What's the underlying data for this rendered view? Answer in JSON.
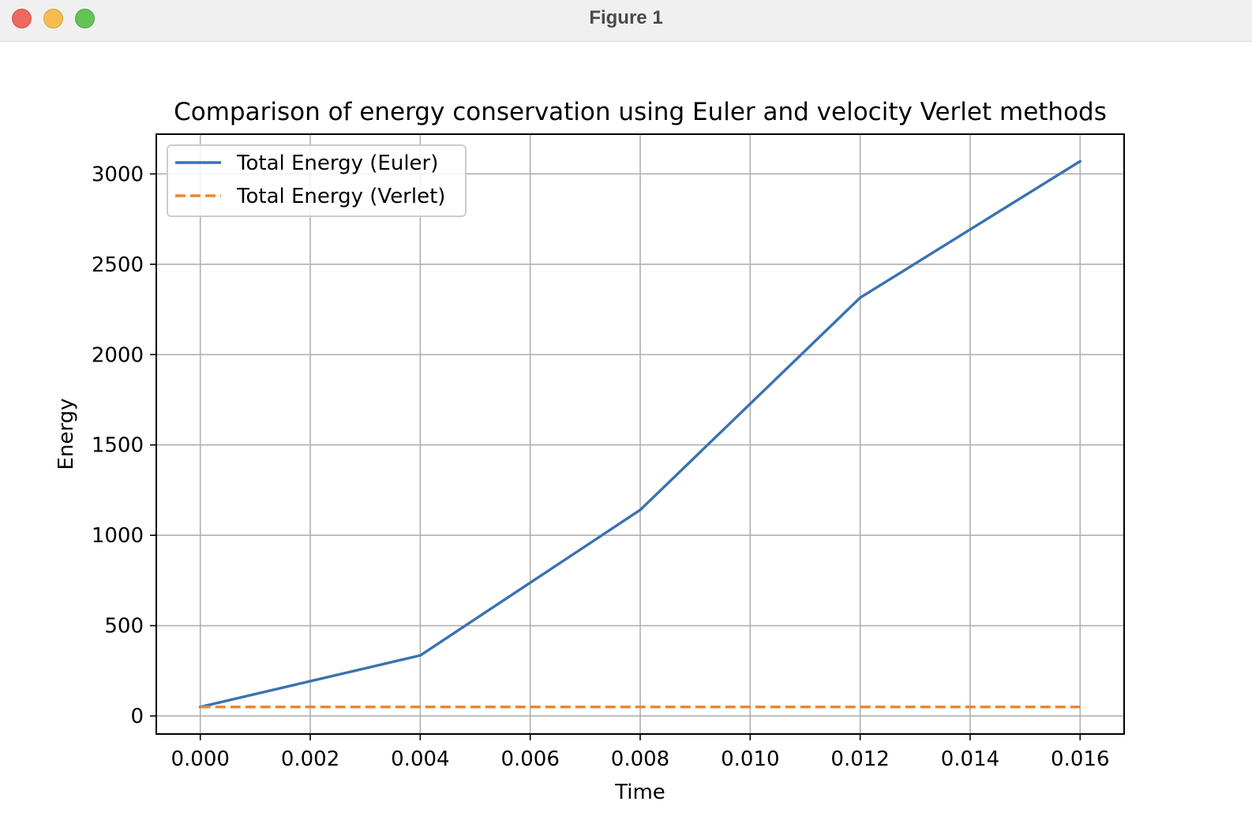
{
  "window": {
    "title": "Figure 1"
  },
  "colors": {
    "euler": "#3a72b0",
    "verlet": "#f0842c",
    "grid": "#b0b0b0",
    "titlebar": "#f0f0f0"
  },
  "chart_data": {
    "type": "line",
    "title": "Comparison of energy conservation using Euler and velocity Verlet methods",
    "xlabel": "Time",
    "ylabel": "Energy",
    "xlim": [
      -0.0008,
      0.0168
    ],
    "ylim": [
      -100,
      3220
    ],
    "xticks": [
      0.0,
      0.002,
      0.004,
      0.006,
      0.008,
      0.01,
      0.012,
      0.014,
      0.016
    ],
    "xtick_labels": [
      "0.000",
      "0.002",
      "0.004",
      "0.006",
      "0.008",
      "0.010",
      "0.012",
      "0.014",
      "0.016"
    ],
    "yticks": [
      0,
      500,
      1000,
      1500,
      2000,
      2500,
      3000
    ],
    "ytick_labels": [
      "0",
      "500",
      "1000",
      "1500",
      "2000",
      "2500",
      "3000"
    ],
    "grid": true,
    "legend_position": "top-left",
    "series": [
      {
        "name": "Total Energy (Euler)",
        "style": "solid",
        "color": "#3a72b0",
        "x": [
          0.0,
          0.004,
          0.008,
          0.012,
          0.016
        ],
        "y": [
          50,
          335,
          1140,
          2315,
          3070
        ]
      },
      {
        "name": "Total Energy (Verlet)",
        "style": "dashed",
        "color": "#f0842c",
        "x": [
          0.0,
          0.004,
          0.008,
          0.012,
          0.016
        ],
        "y": [
          50,
          50,
          50,
          50,
          50
        ]
      }
    ]
  }
}
